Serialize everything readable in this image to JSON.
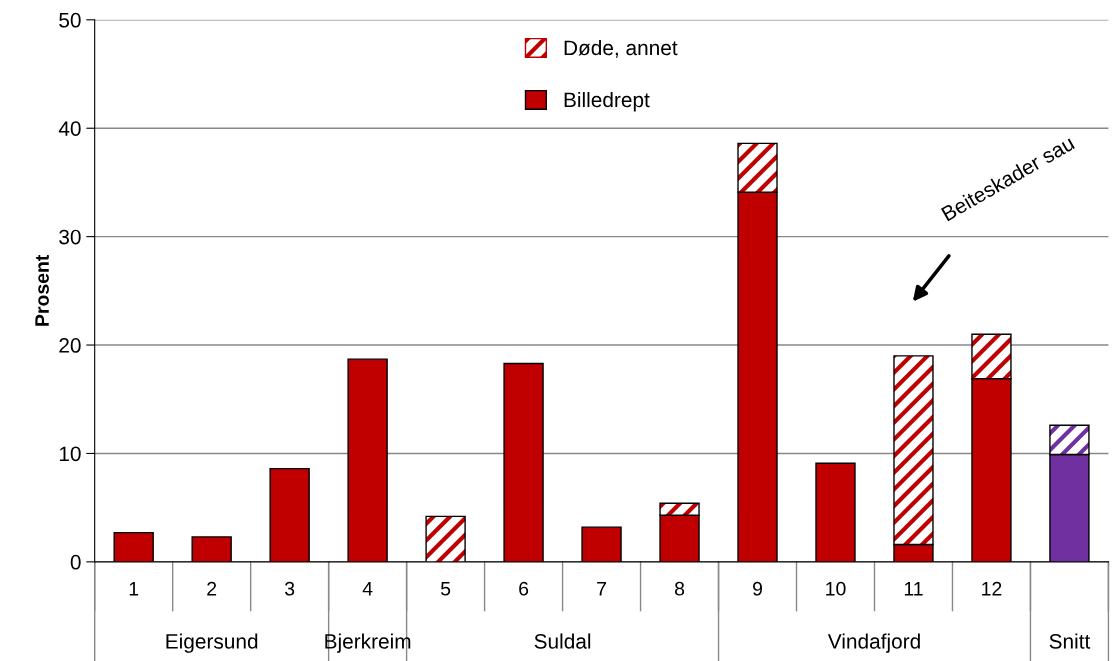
{
  "chart_data": {
    "type": "bar",
    "stacked": true,
    "ylabel": "Prosent",
    "categories": [
      "1",
      "2",
      "3",
      "4",
      "5",
      "6",
      "7",
      "8",
      "9",
      "10",
      "11",
      "12",
      null
    ],
    "series": [
      {
        "name": "Billedrept",
        "color": "#c00000",
        "colors": [
          "#c00000",
          "#c00000",
          "#c00000",
          "#c00000",
          "#c00000",
          "#c00000",
          "#c00000",
          "#c00000",
          "#c00000",
          "#c00000",
          "#c00000",
          "#c00000",
          "#7030a0"
        ],
        "values": [
          2.7,
          2.3,
          8.6,
          18.7,
          0,
          18.3,
          3.2,
          4.3,
          34.1,
          9.1,
          1.6,
          16.9,
          9.9
        ]
      },
      {
        "name": "Døde, annet",
        "color": "#c00000",
        "colors": [
          "#c00000",
          "#c00000",
          "#c00000",
          "#c00000",
          "#c00000",
          "#c00000",
          "#c00000",
          "#c00000",
          "#c00000",
          "#c00000",
          "#c00000",
          "#c00000",
          "#7030a0"
        ],
        "values": [
          null,
          null,
          null,
          null,
          4.2,
          null,
          null,
          1.1,
          4.5,
          null,
          17.4,
          4.1,
          2.7
        ]
      }
    ],
    "ylim": [
      0,
      50
    ],
    "yticks": [
      0,
      10,
      20,
      30,
      40,
      50
    ],
    "grid": "y",
    "legend": "top",
    "annotations": [
      "Eigersund",
      "Bjerkreim",
      "Suldal",
      "Vindafjord",
      "Snitt",
      "Beiteskader sau"
    ]
  }
}
